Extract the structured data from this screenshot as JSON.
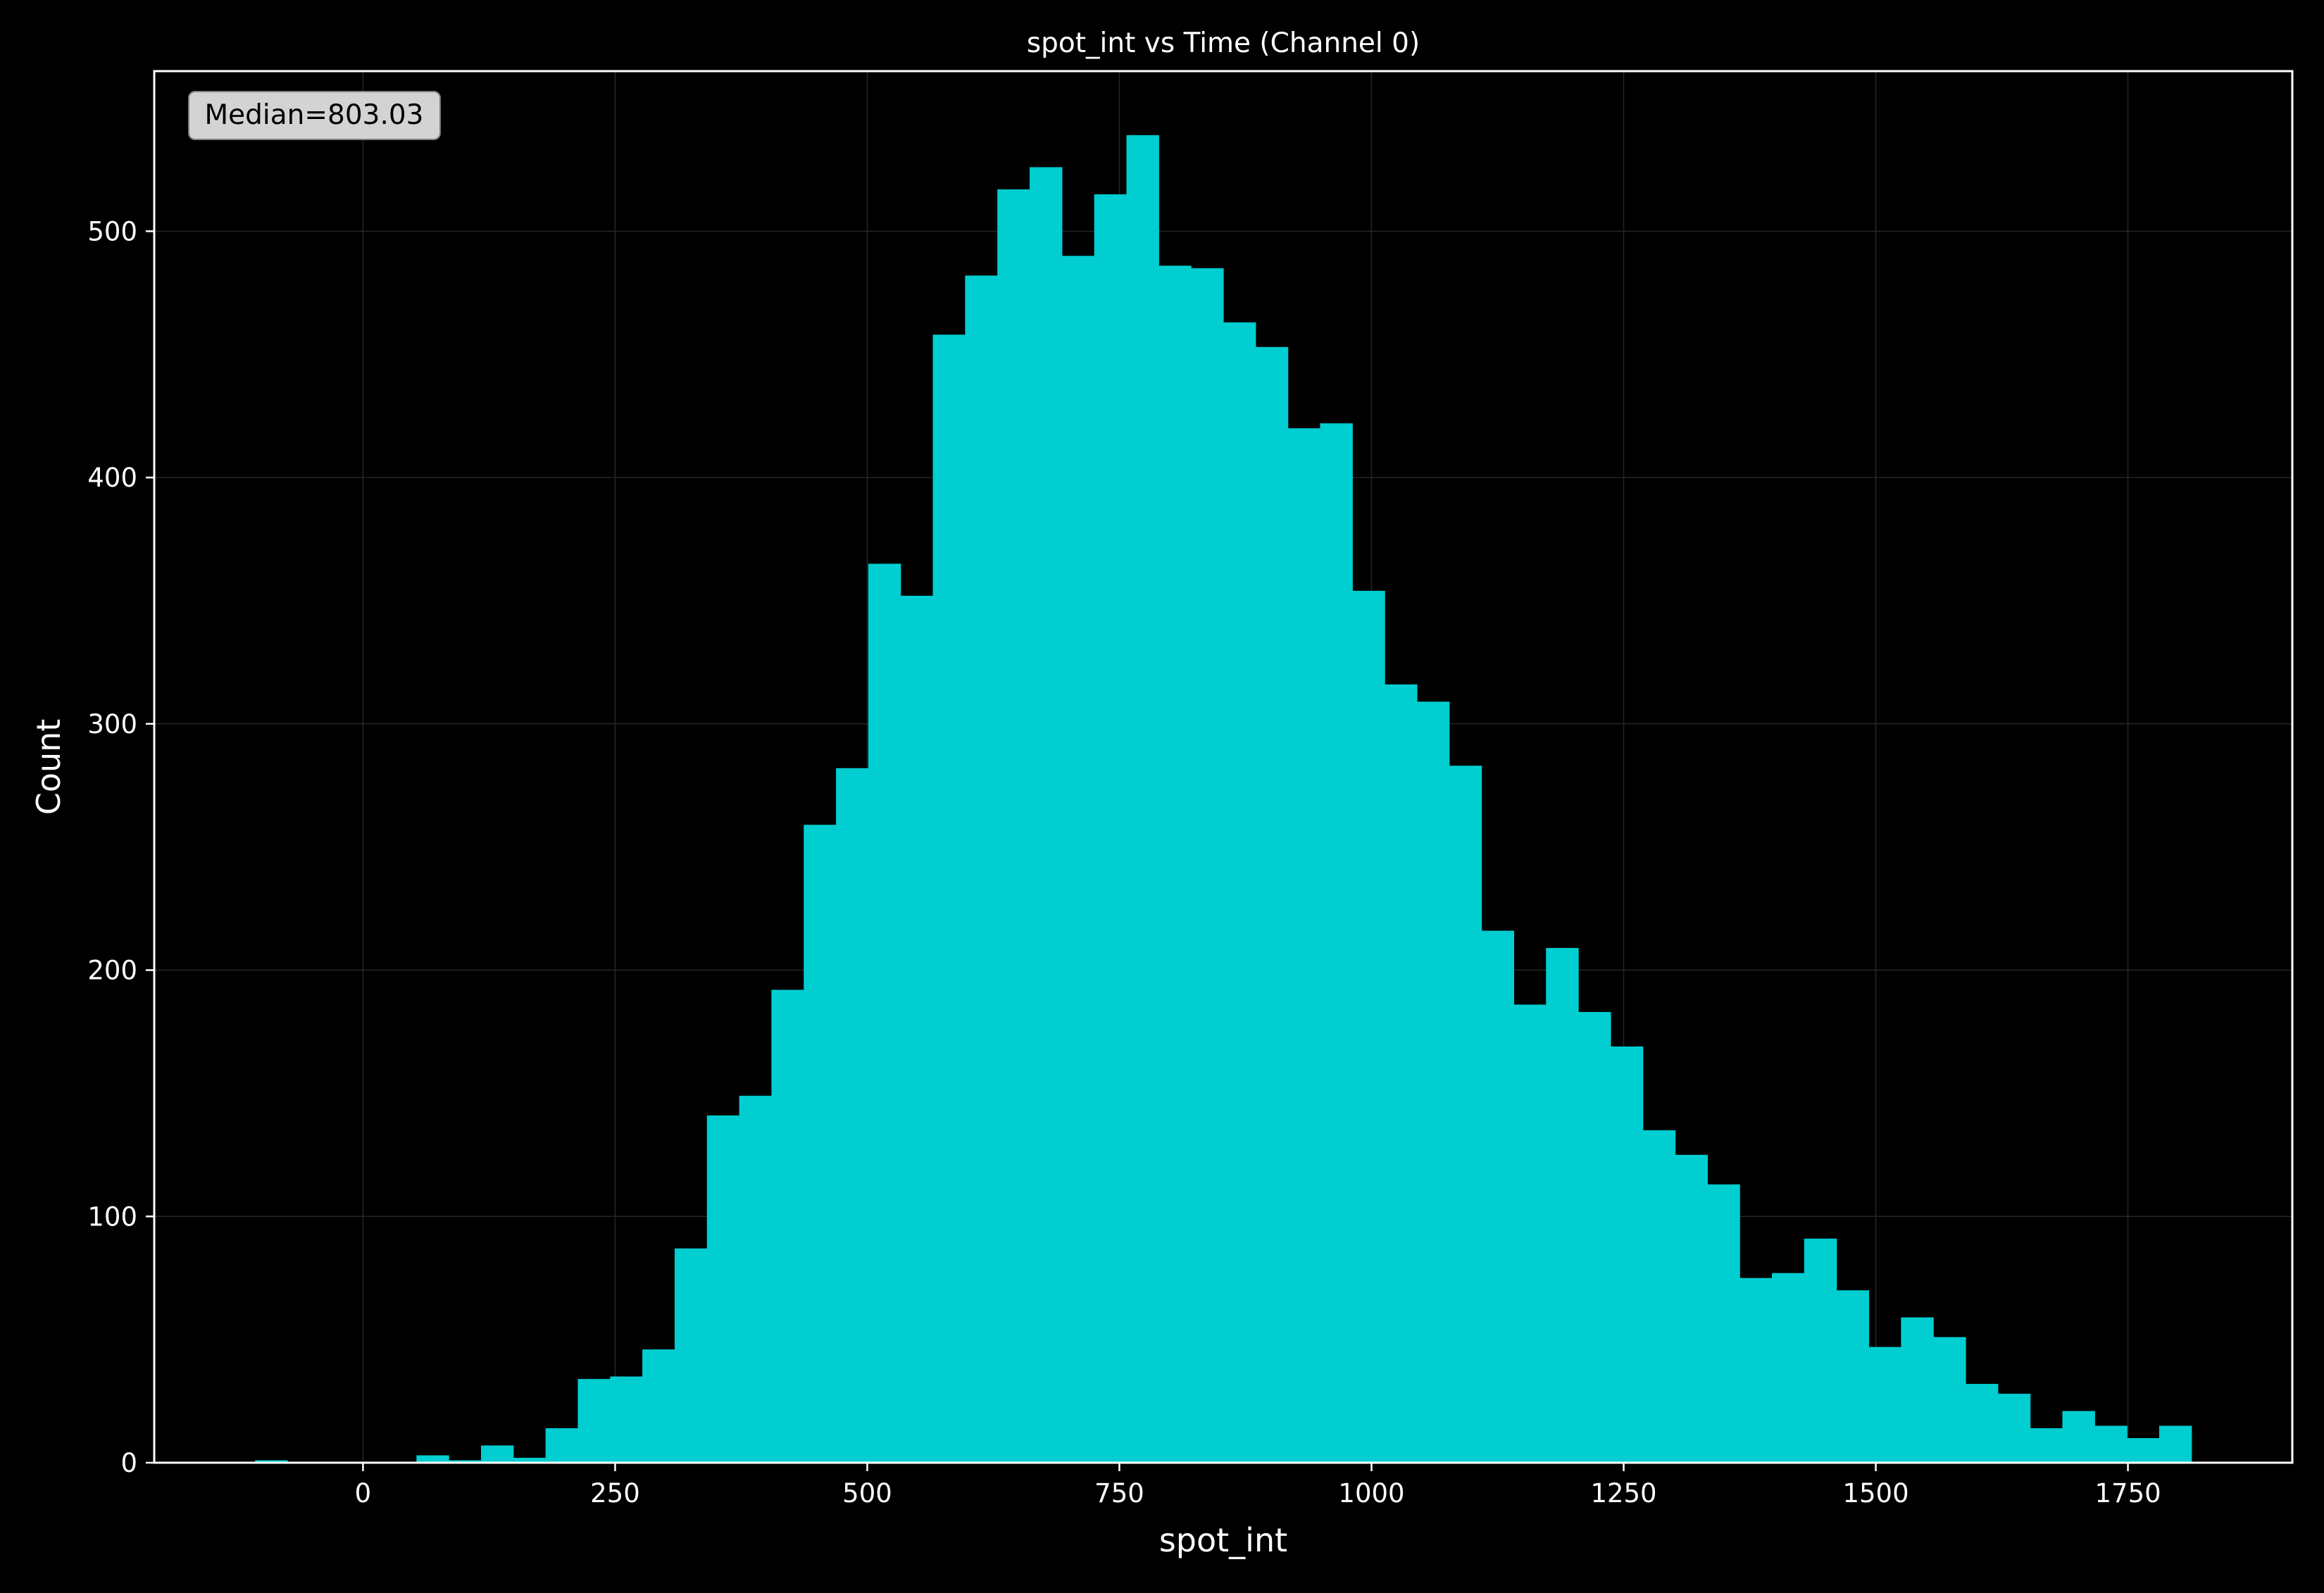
{
  "chart_data": {
    "type": "bar",
    "title": "spot_int vs Time (Channel 0)",
    "xlabel": "spot_int",
    "ylabel": "Count",
    "xlim": [
      -207,
      1913
    ],
    "ylim": [
      0,
      565
    ],
    "x_ticks": [
      0,
      250,
      500,
      750,
      1000,
      1250,
      1500,
      1750
    ],
    "x_tick_labels": [
      "0",
      "250",
      "500",
      "750",
      "1000",
      "1250",
      "1500",
      "1750"
    ],
    "y_ticks": [
      0,
      100,
      200,
      300,
      400,
      500
    ],
    "y_tick_labels": [
      "0",
      "100",
      "200",
      "300",
      "400",
      "500"
    ],
    "grid": true,
    "bar_color": "#00CED1",
    "background_color": "#000000",
    "annotation": "Median=803.03",
    "bin_edges": [
      -107,
      -75,
      -43,
      -11,
      21,
      53,
      85,
      117,
      149,
      181,
      213,
      245,
      277,
      309,
      341,
      373,
      405,
      437,
      469,
      501,
      533,
      565,
      597,
      629,
      661,
      693,
      725,
      757,
      789,
      821,
      853,
      885,
      917,
      949,
      981,
      1013,
      1045,
      1077,
      1109,
      1141,
      1173,
      1205,
      1237,
      1269,
      1301,
      1333,
      1365,
      1397,
      1429,
      1461,
      1493,
      1525,
      1557,
      1589,
      1621,
      1653,
      1685,
      1717,
      1749,
      1781,
      1813
    ],
    "counts": [
      1,
      0,
      0,
      0,
      0,
      3,
      1,
      7,
      2,
      14,
      34,
      35,
      46,
      87,
      141,
      149,
      192,
      259,
      282,
      365,
      352,
      458,
      482,
      517,
      526,
      490,
      515,
      539,
      486,
      485,
      463,
      453,
      420,
      422,
      354,
      316,
      309,
      283,
      216,
      186,
      209,
      183,
      169,
      135,
      125,
      113,
      75,
      77,
      91,
      70,
      47,
      59,
      51,
      32,
      28,
      14,
      21,
      15,
      10,
      15
    ]
  }
}
